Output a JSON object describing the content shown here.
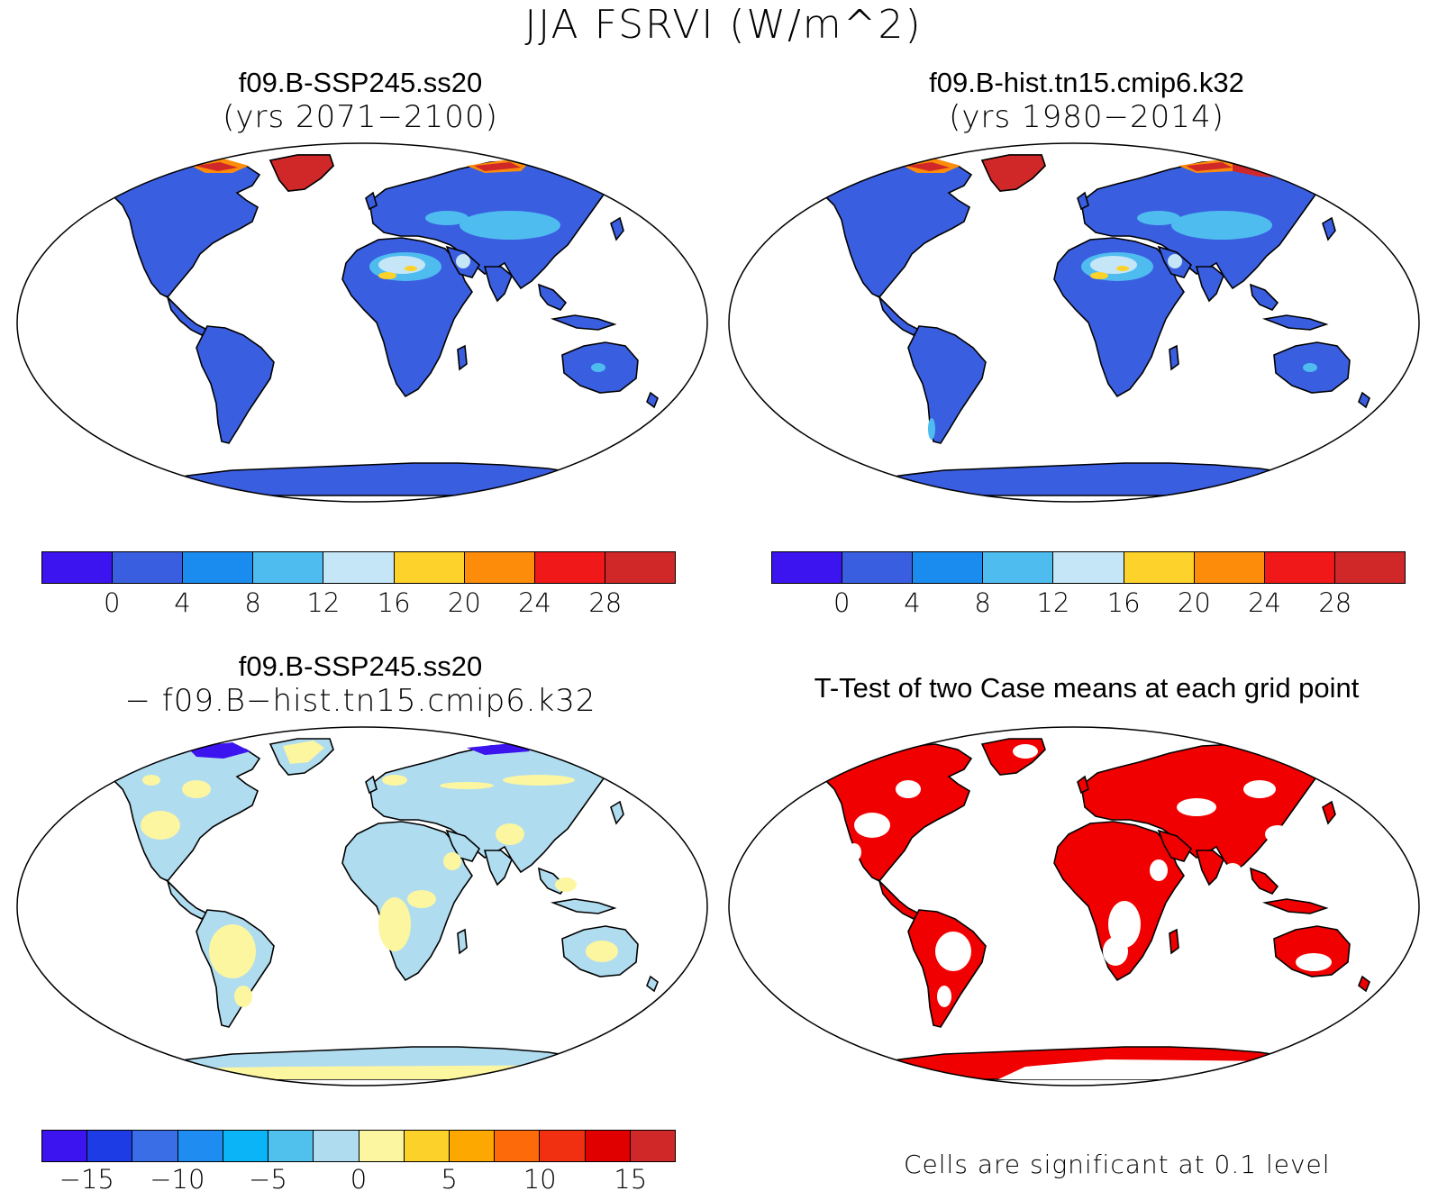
{
  "figure": {
    "title": "JJA FSRVI (W/m^2)"
  },
  "panels": {
    "p1": {
      "title": "f09.B-SSP245.ss20",
      "subtitle": "(yrs 2071−2100)"
    },
    "p2": {
      "title": "f09.B-hist.tn15.cmip6.k32",
      "subtitle": "(yrs 1980−2014)"
    },
    "p3": {
      "title": "f09.B-SSP245.ss20",
      "subtitle": "− f09.B−hist.tn15.cmip6.k32"
    },
    "p4": {
      "title": "T-Test of two Case means at each grid point",
      "note": "Cells are significant at 0.1 level"
    }
  },
  "colorbars": {
    "abs": {
      "colors": [
        "#3c14f0",
        "#3a5ee0",
        "#1a8cf0",
        "#4fbcf0",
        "#c4e6f6",
        "#fdd22a",
        "#fc8c0a",
        "#f01818",
        "#d02828"
      ],
      "labels": [
        "0",
        "4",
        "8",
        "12",
        "16",
        "20",
        "24",
        "28"
      ]
    },
    "diff": {
      "colors": [
        "#3c14f0",
        "#1e3ce6",
        "#3a6ee6",
        "#1e8cf0",
        "#0ab4f6",
        "#50c0ec",
        "#b0dcf0",
        "#fcf6a0",
        "#fcd22a",
        "#fca800",
        "#fc6a0a",
        "#f03010",
        "#e00000",
        "#d02828"
      ],
      "labels": [
        "−15",
        "−10",
        "−5",
        "0",
        "5",
        "10",
        "15"
      ]
    }
  },
  "map_colors": {
    "ocean": "#ffffff",
    "land_abs": "#3a5ee0",
    "desert_light": "#4fbcf0",
    "desert_pale": "#c4e6f6",
    "desert_hot": "#fdd22a",
    "arctic_red": "#d02828",
    "arctic_orange": "#fc8c0a",
    "land_diff": "#b0dcf0",
    "diff_yellow": "#fcf6a0",
    "diff_blue": "#3c14f0",
    "sig_red": "#f00000",
    "coast": "#000000"
  }
}
